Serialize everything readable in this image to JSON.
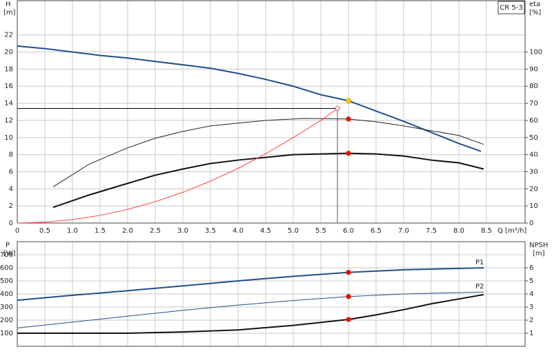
{
  "chart_data": [
    {
      "type": "line",
      "label_box": "CR 5-3",
      "ylabel": "H",
      "yunit": "[m]",
      "y2label": "eta",
      "y2unit": "[%]",
      "xlabel": "Q [m³/h]",
      "xlim": [
        0,
        9.2
      ],
      "xticks": [
        0,
        0.5,
        {
          "value": 1,
          "label": "1.0"
        },
        1.5,
        {
          "value": 2,
          "label": "2.0"
        },
        2.5,
        {
          "value": 3,
          "label": "3.0"
        },
        3.5,
        {
          "value": 4,
          "label": "4.0"
        },
        4.5,
        {
          "value": 5,
          "label": "5.0"
        },
        5.5,
        {
          "value": 6,
          "label": "6.0"
        },
        6.5,
        {
          "value": 7,
          "label": "7.0"
        },
        7.5,
        {
          "value": 8,
          "label": "8.0"
        },
        8.5
      ],
      "ylim": [
        0,
        26
      ],
      "yticks": [
        0,
        2,
        4,
        6,
        8,
        10,
        12,
        14,
        16,
        18,
        20,
        22
      ],
      "y2lim": [
        0,
        130
      ],
      "y2ticks": [
        0,
        10,
        20,
        30,
        40,
        50,
        60,
        70,
        80,
        90,
        100
      ],
      "grid": true,
      "series": [
        {
          "color": "#1f4e8c",
          "width": 2,
          "axis": "y",
          "x": [
            0,
            0.5,
            1,
            1.5,
            2,
            2.5,
            3,
            3.5,
            4,
            4.5,
            5,
            5.5,
            6,
            6.5,
            7,
            7.5,
            8,
            8.4
          ],
          "values": [
            20.7,
            20.4,
            20.0,
            19.6,
            19.3,
            18.9,
            18.5,
            18.1,
            17.5,
            16.8,
            16.0,
            15.0,
            14.3,
            13.1,
            11.9,
            10.6,
            9.3,
            8.4
          ]
        },
        {
          "color": "#222222",
          "width": 1,
          "axis": "y2",
          "x": [
            0.65,
            1.3,
            2,
            2.5,
            3,
            3.5,
            4,
            4.5,
            5.2,
            6,
            6.5,
            7,
            7.5,
            8,
            8.45
          ],
          "values": [
            21.2,
            34.4,
            44,
            49.6,
            53.6,
            56.8,
            58.4,
            60,
            61.2,
            60.8,
            59.2,
            56.8,
            54,
            51.2,
            46
          ]
        },
        {
          "color": "#111111",
          "width": 2,
          "axis": "y2",
          "x": [
            0.65,
            1.3,
            2,
            2.5,
            3,
            3.5,
            4,
            4.5,
            5,
            6,
            6.5,
            7,
            7.5,
            8,
            8.45
          ],
          "values": [
            9.2,
            16.4,
            23.2,
            28,
            31.6,
            34.8,
            36.8,
            38.4,
            40,
            40.8,
            40.4,
            39.2,
            36.8,
            35.2,
            31.6
          ]
        },
        {
          "color": "#ff4040",
          "width": 1,
          "axis": "y",
          "x": [
            0,
            0.5,
            1,
            1.5,
            2,
            2.5,
            3,
            3.5,
            4,
            4.5,
            5,
            5.5,
            5.8
          ],
          "values": [
            0,
            0.1,
            0.4,
            0.9,
            1.6,
            2.5,
            3.6,
            4.9,
            6.4,
            8.1,
            10.0,
            12.0,
            13.4
          ]
        }
      ],
      "duty_point": {
        "x": 5.8,
        "y": 13.4
      },
      "markers": [
        {
          "x": 6,
          "y": 14.3,
          "axis": "y",
          "color": "#ffcc00"
        },
        {
          "x": 6,
          "y": 60.8,
          "axis": "y2",
          "color": "#ff0000"
        },
        {
          "x": 6,
          "y": 40.8,
          "axis": "y2",
          "color": "#ff0000"
        }
      ]
    },
    {
      "type": "line",
      "ylabel": "P",
      "yunit": "[W]",
      "y2label": "NPSH",
      "y2unit": "[m]",
      "xlim": [
        0,
        9.2
      ],
      "ylim": [
        0,
        800
      ],
      "yticks": [
        100,
        200,
        300,
        400,
        500,
        600,
        700
      ],
      "y2lim": [
        0,
        8
      ],
      "y2ticks": [
        1,
        2,
        3,
        4,
        5,
        6
      ],
      "grid": true,
      "series": [
        {
          "name": "P1",
          "color": "#1f4e8c",
          "width": 2,
          "axis": "y",
          "x": [
            0,
            1,
            2,
            3,
            4,
            5,
            6,
            7,
            8.45
          ],
          "values": [
            352,
            390,
            425,
            462,
            500,
            535,
            565,
            585,
            600
          ]
        },
        {
          "name": "P2",
          "color": "#1f4e8c",
          "width": 1,
          "axis": "y",
          "x": [
            0,
            1,
            2,
            3,
            4,
            5,
            6,
            7,
            8.45
          ],
          "values": [
            140,
            185,
            230,
            275,
            315,
            350,
            380,
            400,
            415
          ]
        },
        {
          "color": "#111111",
          "width": 2,
          "axis": "y2",
          "x": [
            0,
            2,
            3,
            4,
            5,
            6,
            6.5,
            7,
            7.5,
            8.45
          ],
          "values": [
            1.0,
            1.0,
            1.1,
            1.25,
            1.6,
            2.05,
            2.4,
            2.8,
            3.25,
            3.95
          ]
        }
      ],
      "markers": [
        {
          "x": 6,
          "y": 565,
          "axis": "y",
          "color": "#ff0000"
        },
        {
          "x": 6,
          "y": 380,
          "axis": "y",
          "color": "#ff0000"
        },
        {
          "x": 6,
          "y": 2.05,
          "axis": "y2",
          "color": "#ff0000"
        }
      ]
    }
  ]
}
